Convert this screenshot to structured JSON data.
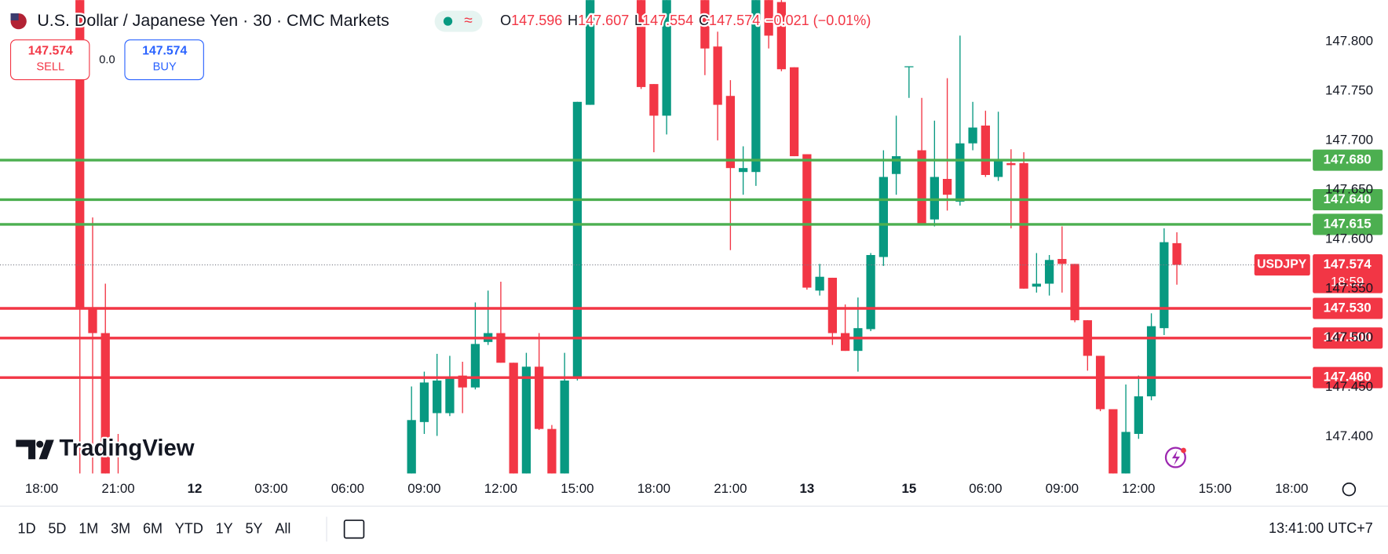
{
  "header": {
    "title": "U.S. Dollar / Japanese Yen · 30 · CMC Markets",
    "ohlc": [
      {
        "key": "O",
        "value": "147.596"
      },
      {
        "key": "H",
        "value": "147.607"
      },
      {
        "key": "L",
        "value": "147.554"
      },
      {
        "key": "C",
        "value": "147.574"
      }
    ],
    "change": "−0.021 (−0.01%)"
  },
  "trade": {
    "sell_price": "147.574",
    "sell": "SELL",
    "spread": "0.0",
    "buy_price": "147.574",
    "buy": "BUY"
  },
  "brand": "TradingView",
  "toolbar": {
    "ranges": [
      "1D",
      "5D",
      "1M",
      "3M",
      "6M",
      "YTD",
      "1Y",
      "5Y",
      "All"
    ],
    "time": "13:41:00 UTC+7"
  },
  "chart_data": {
    "type": "candlestick",
    "up_color": "#089981",
    "down_color": "#f23645",
    "grid": false,
    "ylim": [
      147.363,
      147.842
    ],
    "yticks": [
      {
        "value": 147.4,
        "label": "147.400"
      },
      {
        "value": 147.45,
        "label": "147.450"
      },
      {
        "value": 147.5,
        "label": "147.500"
      },
      {
        "value": 147.55,
        "label": "147.550"
      },
      {
        "value": 147.6,
        "label": "147.600"
      },
      {
        "value": 147.65,
        "label": "147.650"
      },
      {
        "value": 147.7,
        "label": "147.700"
      },
      {
        "value": 147.75,
        "label": "147.750"
      },
      {
        "value": 147.8,
        "label": "147.800"
      }
    ],
    "categories": [
      "18:00",
      null,
      null,
      null,
      null,
      null,
      "21:00",
      null,
      null,
      null,
      null,
      null,
      "12",
      null,
      null,
      null,
      null,
      null,
      "03:00",
      null,
      null,
      null,
      null,
      null,
      "06:00",
      null,
      null,
      null,
      null,
      null,
      "09:00",
      null,
      null,
      null,
      null,
      null,
      "12:00",
      null,
      null,
      null,
      null,
      null,
      "15:00",
      null,
      null,
      null,
      null,
      null,
      "18:00",
      null,
      null,
      null,
      null,
      null,
      "21:00",
      null,
      null,
      null,
      null,
      null,
      "13",
      null,
      null,
      null,
      null,
      null,
      null,
      null,
      "15",
      null,
      null,
      null,
      null,
      null,
      "06:00",
      null,
      null,
      null,
      null,
      null,
      "09:00",
      null,
      null,
      null,
      null,
      null,
      "12:00",
      null,
      null,
      null,
      null,
      null,
      "15:00",
      null,
      null,
      null,
      null,
      null,
      "18:00"
    ],
    "candles": [
      null,
      null,
      null,
      {
        "open": 147.86,
        "high": 147.869,
        "low": 147.358,
        "close": 147.53
      },
      {
        "open": 147.53,
        "high": 147.622,
        "low": 147.358,
        "close": 147.505
      },
      {
        "open": 147.505,
        "high": 147.555,
        "low": 147.331,
        "close": 147.34
      },
      {
        "open": 147.34,
        "high": 147.403,
        "low": 147.3,
        "close": 147.32
      },
      null,
      null,
      null,
      null,
      null,
      null,
      null,
      null,
      null,
      null,
      null,
      null,
      null,
      null,
      null,
      null,
      null,
      null,
      null,
      null,
      null,
      null,
      {
        "open": 147.358,
        "high": 147.451,
        "low": 147.34,
        "close": 147.417
      },
      {
        "open": 147.415,
        "high": 147.466,
        "low": 147.403,
        "close": 147.455
      },
      {
        "open": 147.424,
        "high": 147.484,
        "low": 147.401,
        "close": 147.457
      },
      {
        "open": 147.424,
        "high": 147.482,
        "low": 147.421,
        "close": 147.46
      },
      {
        "open": 147.462,
        "high": 147.476,
        "low": 147.424,
        "close": 147.45
      },
      {
        "open": 147.45,
        "high": 147.536,
        "low": 147.448,
        "close": 147.494
      },
      {
        "open": 147.496,
        "high": 147.548,
        "low": 147.493,
        "close": 147.505
      },
      {
        "open": 147.505,
        "high": 147.557,
        "low": 147.475,
        "close": 147.475
      },
      {
        "open": 147.475,
        "high": 147.475,
        "low": 147.33,
        "close": 147.34
      },
      {
        "open": 147.34,
        "high": 147.485,
        "low": 147.33,
        "close": 147.471
      },
      {
        "open": 147.471,
        "high": 147.505,
        "low": 147.407,
        "close": 147.408
      },
      {
        "open": 147.408,
        "high": 147.412,
        "low": 147.33,
        "close": 147.34
      },
      {
        "open": 147.34,
        "high": 147.485,
        "low": 147.33,
        "close": 147.457
      },
      {
        "open": 147.459,
        "high": 147.739,
        "low": 147.457,
        "close": 147.739
      },
      {
        "open": 147.736,
        "high": 147.87,
        "low": 147.736,
        "close": 147.86
      },
      null,
      null,
      null,
      {
        "open": 147.86,
        "high": 147.87,
        "low": 147.752,
        "close": 147.754
      },
      {
        "open": 147.757,
        "high": 147.757,
        "low": 147.688,
        "close": 147.725
      },
      {
        "open": 147.725,
        "high": 147.87,
        "low": 147.706,
        "close": 147.86
      },
      null,
      null,
      {
        "open": 147.86,
        "high": 147.87,
        "low": 147.766,
        "close": 147.793
      },
      {
        "open": 147.795,
        "high": 147.81,
        "low": 147.7,
        "close": 147.736
      },
      {
        "open": 147.745,
        "high": 147.761,
        "low": 147.589,
        "close": 147.672
      },
      {
        "open": 147.668,
        "high": 147.694,
        "low": 147.645,
        "close": 147.672
      },
      {
        "open": 147.668,
        "high": 147.87,
        "low": 147.654,
        "close": 147.86
      },
      {
        "open": 147.86,
        "high": 147.87,
        "low": 147.793,
        "close": 147.806
      },
      {
        "open": 147.84,
        "high": 147.87,
        "low": 147.77,
        "close": 147.772
      },
      {
        "open": 147.774,
        "high": 147.774,
        "low": 147.684,
        "close": 147.684
      },
      {
        "open": 147.686,
        "high": 147.686,
        "low": 147.549,
        "close": 147.551
      },
      {
        "open": 147.548,
        "high": 147.575,
        "low": 147.543,
        "close": 147.562
      },
      {
        "open": 147.561,
        "high": 147.561,
        "low": 147.493,
        "close": 147.505
      },
      {
        "open": 147.505,
        "high": 147.534,
        "low": 147.487,
        "close": 147.487
      },
      {
        "open": 147.487,
        "high": 147.541,
        "low": 147.466,
        "close": 147.51
      },
      {
        "open": 147.509,
        "high": 147.586,
        "low": 147.507,
        "close": 147.584
      },
      {
        "open": 147.582,
        "high": 147.69,
        "low": 147.573,
        "close": 147.663
      },
      {
        "open": 147.666,
        "high": 147.725,
        "low": 147.645,
        "close": 147.684
      },
      {
        "open": 147.774,
        "high": 147.775,
        "low": 147.743,
        "close": 147.775
      },
      {
        "open": 147.69,
        "high": 147.743,
        "low": 147.614,
        "close": 147.614
      },
      {
        "open": 147.62,
        "high": 147.72,
        "low": 147.613,
        "close": 147.663
      },
      {
        "open": 147.661,
        "high": 147.763,
        "low": 147.629,
        "close": 147.645
      },
      {
        "open": 147.638,
        "high": 147.806,
        "low": 147.634,
        "close": 147.697
      },
      {
        "open": 147.697,
        "high": 147.739,
        "low": 147.69,
        "close": 147.713
      },
      {
        "open": 147.715,
        "high": 147.73,
        "low": 147.663,
        "close": 147.665
      },
      {
        "open": 147.663,
        "high": 147.729,
        "low": 147.659,
        "close": 147.679
      },
      {
        "open": 147.677,
        "high": 147.691,
        "low": 147.611,
        "close": 147.675
      },
      {
        "open": 147.677,
        "high": 147.688,
        "low": 147.55,
        "close": 147.55
      },
      {
        "open": 147.552,
        "high": 147.586,
        "low": 147.546,
        "close": 147.555
      },
      {
        "open": 147.555,
        "high": 147.584,
        "low": 147.543,
        "close": 147.579
      },
      {
        "open": 147.58,
        "high": 147.613,
        "low": 147.546,
        "close": 147.575
      },
      {
        "open": 147.575,
        "high": 147.575,
        "low": 147.516,
        "close": 147.518
      },
      {
        "open": 147.518,
        "high": 147.518,
        "low": 147.467,
        "close": 147.482
      },
      {
        "open": 147.482,
        "high": 147.482,
        "low": 147.426,
        "close": 147.428
      },
      {
        "open": 147.428,
        "high": 147.428,
        "low": 147.34,
        "close": 147.35
      },
      {
        "open": 147.35,
        "high": 147.453,
        "low": 147.34,
        "close": 147.405
      },
      {
        "open": 147.403,
        "high": 147.462,
        "low": 147.398,
        "close": 147.441
      },
      {
        "open": 147.441,
        "high": 147.525,
        "low": 147.437,
        "close": 147.512
      },
      {
        "open": 147.51,
        "high": 147.611,
        "low": 147.503,
        "close": 147.597
      },
      {
        "open": 147.596,
        "high": 147.607,
        "low": 147.554,
        "close": 147.574
      },
      null,
      null,
      null,
      null,
      null,
      null,
      null,
      null,
      null
    ],
    "levels": [
      {
        "value": 147.68,
        "label": "147.680",
        "color": "#4caf50"
      },
      {
        "value": 147.64,
        "label": "147.640",
        "color": "#4caf50"
      },
      {
        "value": 147.615,
        "label": "147.615",
        "color": "#4caf50"
      },
      {
        "value": 147.53,
        "label": "147.530",
        "color": "#f23645"
      },
      {
        "value": 147.5,
        "label": "147.500",
        "color": "#f23645"
      },
      {
        "value": 147.46,
        "label": "147.460",
        "color": "#f23645"
      }
    ],
    "last_price": {
      "symbol": "USDJPY",
      "value": 147.574,
      "label": "147.574",
      "countdown": "18:59",
      "color": "#f23645"
    }
  }
}
